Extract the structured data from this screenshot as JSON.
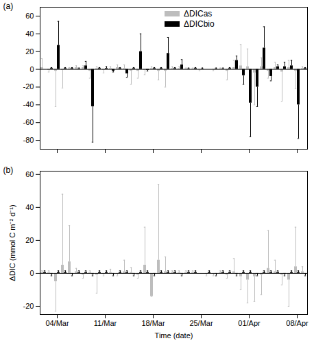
{
  "chart_data": [
    {
      "type": "bar",
      "title": "(a)",
      "tick_labels": "y",
      "legend": "top",
      "x": [
        null,
        null,
        "04/Mar",
        null,
        null,
        null,
        null,
        null,
        null,
        "11/Mar",
        null,
        null,
        null,
        null,
        null,
        null,
        "18/Mar",
        null,
        null,
        null,
        null,
        null,
        null,
        "25/Mar",
        null,
        null,
        null,
        null,
        null,
        null,
        "01/Apr",
        null,
        null,
        null,
        null,
        null,
        null,
        "08/Apr",
        null
      ],
      "ylim": [
        -90,
        70
      ],
      "yticks": [
        -80,
        -60,
        -40,
        -20,
        0,
        20,
        40,
        60
      ],
      "series": [
        {
          "name": "ΔDICas",
          "color": "#bdbdbd",
          "values": [
            2,
            -1,
            -2,
            -1,
            1,
            2,
            2,
            -2,
            1,
            -1,
            1,
            2,
            1,
            -2,
            -2,
            -1,
            1,
            -2,
            -2,
            1,
            1,
            0.5,
            0.5,
            -0.5,
            null,
            -0.5,
            0.5,
            -2,
            2,
            4,
            3,
            -4,
            3,
            -2,
            2,
            -3,
            2,
            -2,
            1
          ],
          "errors": [
            10,
            2,
            40,
            20,
            1,
            2,
            2,
            8,
            2,
            3,
            2,
            3,
            4,
            15,
            8,
            5,
            2,
            10,
            18,
            2,
            2,
            1,
            1,
            1,
            null,
            1,
            1,
            10,
            8,
            24,
            20,
            36,
            10,
            8,
            6,
            33,
            8,
            20,
            2
          ]
        },
        {
          "name": "ΔDICbio",
          "color": "#000000",
          "values": [
            null,
            1,
            27,
            1,
            1,
            0.5,
            4,
            -42,
            1,
            1,
            -2,
            1,
            -5,
            1,
            20,
            -1,
            1,
            1,
            18,
            1,
            5,
            0.5,
            1,
            0.5,
            null,
            0.5,
            0.5,
            1,
            10,
            -7,
            -38,
            -20,
            24,
            -8,
            3,
            3,
            4,
            -40,
            1
          ],
          "errors": [
            null,
            1,
            27,
            1,
            1,
            1,
            5,
            40,
            1,
            2,
            1,
            1,
            4,
            1,
            20,
            1,
            1,
            1,
            18,
            1,
            6,
            1,
            1,
            1,
            null,
            1,
            1,
            1,
            5,
            10,
            38,
            22,
            24,
            5,
            2,
            5,
            6,
            38,
            1
          ]
        }
      ]
    },
    {
      "type": "bar",
      "title": "(b)",
      "x_label": "Time (date)",
      "y_label": "ΔDIC (mmol C m⁻² d⁻¹)",
      "x": [
        null,
        null,
        "04/Mar",
        null,
        null,
        null,
        null,
        null,
        null,
        "11/Mar",
        null,
        null,
        null,
        null,
        null,
        null,
        "18/Mar",
        null,
        null,
        null,
        null,
        null,
        null,
        "25/Mar",
        null,
        null,
        null,
        null,
        null,
        null,
        "01/Apr",
        null,
        null,
        null,
        null,
        null,
        null,
        "08/Apr",
        null
      ],
      "ylim": [
        -25,
        62
      ],
      "yticks": [
        -20,
        0,
        20,
        40,
        60
      ],
      "series": [
        {
          "name": "ΔDICas",
          "color": "#bdbdbd",
          "values": [
            0.5,
            0.5,
            -5,
            5,
            7,
            1,
            -1,
            0.5,
            -1,
            -0.5,
            0.5,
            -0.5,
            1,
            0.5,
            -1,
            5,
            -14,
            8,
            1,
            0.5,
            0.5,
            0.5,
            0.5,
            null,
            -0.5,
            -0.5,
            0.5,
            -1,
            1,
            -2,
            -4,
            -2,
            -1,
            3,
            1,
            -1,
            -4,
            4,
            1
          ],
          "errors": [
            1,
            1,
            18,
            43,
            22,
            2,
            2,
            1,
            11,
            1,
            2,
            1,
            7,
            3,
            2,
            23,
            0,
            46,
            9,
            1,
            1,
            1,
            1,
            null,
            1,
            1,
            1,
            2,
            8,
            8,
            14,
            15,
            12,
            23,
            7,
            6,
            16,
            24,
            3
          ]
        },
        {
          "name": "ΔDICbio",
          "color": "#000000",
          "values": [
            0.5,
            -0.5,
            0.5,
            0.5,
            -0.5,
            0.5,
            0.5,
            -0.5,
            0.5,
            0.5,
            -0.5,
            0.5,
            0.5,
            -0.5,
            0.5,
            0.5,
            -0.5,
            0.5,
            0.5,
            0.5,
            -0.5,
            0.5,
            0.5,
            null,
            0.5,
            -0.5,
            0.5,
            0.5,
            -0.5,
            0.5,
            0.5,
            -0.5,
            0.5,
            0.5,
            0.5,
            -0.5,
            0.5,
            0.5,
            -0.5
          ],
          "errors": [
            1,
            1,
            1,
            1,
            1,
            1,
            1,
            1,
            1,
            1,
            1,
            1,
            1,
            1,
            1,
            1,
            1,
            1,
            1,
            1,
            1,
            1,
            1,
            null,
            1,
            1,
            1,
            1,
            1,
            1,
            1,
            1,
            1,
            1,
            1,
            1,
            1,
            1,
            1
          ]
        }
      ]
    }
  ]
}
